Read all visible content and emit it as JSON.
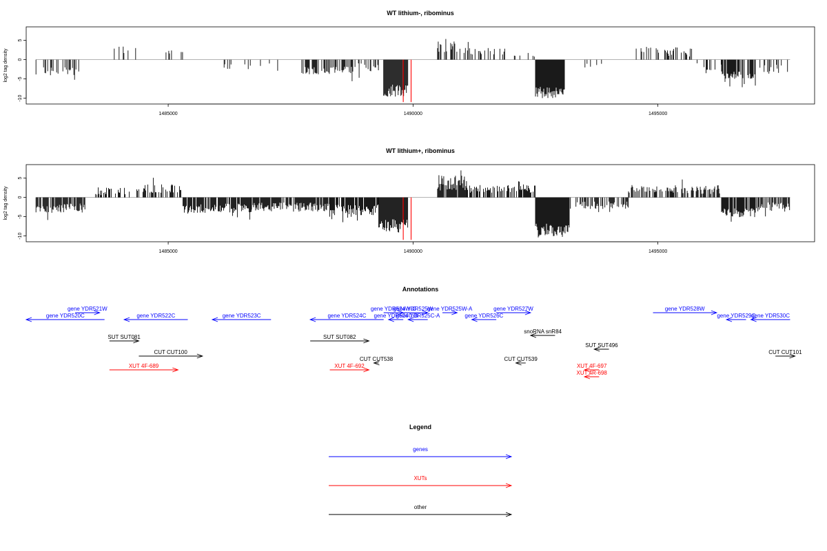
{
  "chart_data": [
    {
      "type": "bar",
      "title": "WT lithium-, ribominus",
      "ylabel": "log2 tag density",
      "xlim": [
        1482100,
        1498200
      ],
      "ylim": [
        -11.5,
        8.5
      ],
      "xticks": [
        1485000,
        1490000,
        1495000
      ],
      "yticks": [
        5,
        0,
        -5,
        -10
      ],
      "grid": false,
      "red_markers_x": [
        1489800,
        1489960
      ],
      "regions": [
        {
          "start": 1482300,
          "end": 1483200,
          "base": -3.0,
          "amp": 1.2,
          "density": 0.4
        },
        {
          "start": 1483800,
          "end": 1484400,
          "base": 2.5,
          "amp": 1.0,
          "density": 0.2
        },
        {
          "start": 1484800,
          "end": 1485300,
          "base": 1.8,
          "amp": 0.6,
          "density": 0.1
        },
        {
          "start": 1486100,
          "end": 1486700,
          "base": -1.8,
          "amp": 0.7,
          "density": 0.2
        },
        {
          "start": 1486700,
          "end": 1487300,
          "base": -1.5,
          "amp": 0.5,
          "density": 0.1
        },
        {
          "start": 1487700,
          "end": 1488800,
          "base": -2.8,
          "amp": 1.0,
          "density": 0.5
        },
        {
          "start": 1488800,
          "end": 1489300,
          "base": -2.0,
          "amp": 1.2,
          "density": 0.3
        },
        {
          "start": 1489400,
          "end": 1489900,
          "base": -8.0,
          "amp": 1.6,
          "density": 1.0
        },
        {
          "start": 1490500,
          "end": 1490900,
          "base": 3.5,
          "amp": 2.0,
          "density": 0.7
        },
        {
          "start": 1490900,
          "end": 1491900,
          "base": 2.2,
          "amp": 0.9,
          "density": 0.25
        },
        {
          "start": 1491900,
          "end": 1492500,
          "base": 1.5,
          "amp": 1.0,
          "density": 0.2
        },
        {
          "start": 1492500,
          "end": 1493100,
          "base": -8.6,
          "amp": 1.6,
          "density": 1.0
        },
        {
          "start": 1493300,
          "end": 1493900,
          "base": -1.6,
          "amp": 0.6,
          "density": 0.1
        },
        {
          "start": 1494500,
          "end": 1495000,
          "base": 2.5,
          "amp": 1.0,
          "density": 0.2
        },
        {
          "start": 1495000,
          "end": 1495800,
          "base": 2.0,
          "amp": 1.2,
          "density": 0.3
        },
        {
          "start": 1495800,
          "end": 1496300,
          "base": -1.8,
          "amp": 1.0,
          "density": 0.2
        },
        {
          "start": 1496300,
          "end": 1497000,
          "base": -4.0,
          "amp": 1.0,
          "density": 0.7
        },
        {
          "start": 1497000,
          "end": 1497700,
          "base": -2.5,
          "amp": 1.2,
          "density": 0.3
        }
      ]
    },
    {
      "type": "bar",
      "title": "WT lithium+, ribominus",
      "ylabel": "log2 tag density",
      "xlim": [
        1482100,
        1498200
      ],
      "ylim": [
        -11.5,
        8.5
      ],
      "xticks": [
        1485000,
        1490000,
        1495000
      ],
      "yticks": [
        5,
        0,
        -5,
        -10
      ],
      "grid": false,
      "red_markers_x": [
        1489800,
        1489960
      ],
      "regions": [
        {
          "start": 1482300,
          "end": 1483300,
          "base": -2.8,
          "amp": 1.2,
          "density": 0.8
        },
        {
          "start": 1483500,
          "end": 1484400,
          "base": 1.6,
          "amp": 1.0,
          "density": 0.4
        },
        {
          "start": 1484400,
          "end": 1485300,
          "base": 2.2,
          "amp": 1.2,
          "density": 0.5
        },
        {
          "start": 1485300,
          "end": 1486700,
          "base": -2.8,
          "amp": 1.2,
          "density": 0.8
        },
        {
          "start": 1486700,
          "end": 1488300,
          "base": -2.5,
          "amp": 1.2,
          "density": 0.9
        },
        {
          "start": 1488300,
          "end": 1489300,
          "base": -3.2,
          "amp": 1.4,
          "density": 0.9
        },
        {
          "start": 1489300,
          "end": 1489900,
          "base": -7.5,
          "amp": 1.8,
          "density": 1.0
        },
        {
          "start": 1490500,
          "end": 1491100,
          "base": 3.8,
          "amp": 2.0,
          "density": 0.9
        },
        {
          "start": 1491100,
          "end": 1492500,
          "base": 2.2,
          "amp": 1.0,
          "density": 0.6
        },
        {
          "start": 1492500,
          "end": 1493200,
          "base": -8.6,
          "amp": 1.8,
          "density": 1.0
        },
        {
          "start": 1493200,
          "end": 1494400,
          "base": -2.0,
          "amp": 1.0,
          "density": 0.5
        },
        {
          "start": 1494400,
          "end": 1495500,
          "base": 2.2,
          "amp": 1.0,
          "density": 0.5
        },
        {
          "start": 1495500,
          "end": 1496300,
          "base": 2.0,
          "amp": 1.2,
          "density": 0.6
        },
        {
          "start": 1496300,
          "end": 1497000,
          "base": -4.0,
          "amp": 1.2,
          "density": 0.9
        },
        {
          "start": 1497000,
          "end": 1497700,
          "base": -2.5,
          "amp": 1.2,
          "density": 0.7
        }
      ]
    },
    {
      "type": "annotation-track",
      "title": "Annotations",
      "xlim": [
        1482100,
        1498200
      ],
      "features": [
        {
          "label": "gene YDR520C",
          "start": 1482100,
          "end": 1483700,
          "strand": "-",
          "row": 0,
          "kind": "gene"
        },
        {
          "label": "gene YDR521W",
          "start": 1483100,
          "end": 1483600,
          "strand": "+",
          "row": -1,
          "kind": "gene"
        },
        {
          "label": "gene YDR522C",
          "start": 1484100,
          "end": 1485400,
          "strand": "-",
          "row": 0,
          "kind": "gene"
        },
        {
          "label": "gene YDR523C",
          "start": 1485900,
          "end": 1487100,
          "strand": "-",
          "row": 0,
          "kind": "gene"
        },
        {
          "label": "gene YDR524C",
          "start": 1487900,
          "end": 1489400,
          "strand": "-",
          "row": 0,
          "kind": "gene"
        },
        {
          "label": "gene YDR524W-C",
          "start": 1489400,
          "end": 1489800,
          "strand": "+",
          "row": -1,
          "kind": "gene"
        },
        {
          "label": "gene YDR525W",
          "start": 1489700,
          "end": 1490300,
          "strand": "+",
          "row": -1,
          "kind": "gene"
        },
        {
          "label": "gene YDR524C-B",
          "start": 1489500,
          "end": 1489800,
          "strand": "-",
          "row": 0,
          "kind": "gene"
        },
        {
          "label": "gene YDR525C-A",
          "start": 1489900,
          "end": 1490300,
          "strand": "-",
          "row": 0,
          "kind": "gene"
        },
        {
          "label": "gene YDR525W-A",
          "start": 1490600,
          "end": 1490900,
          "strand": "+",
          "row": -1,
          "kind": "gene"
        },
        {
          "label": "gene YDR526C",
          "start": 1491200,
          "end": 1491700,
          "strand": "-",
          "row": 0,
          "kind": "gene"
        },
        {
          "label": "gene YDR527W",
          "start": 1491700,
          "end": 1492400,
          "strand": "+",
          "row": -1,
          "kind": "gene"
        },
        {
          "label": "gene YDR528W",
          "start": 1494900,
          "end": 1496200,
          "strand": "+",
          "row": -1,
          "kind": "gene"
        },
        {
          "label": "gene YDR529C",
          "start": 1496400,
          "end": 1496800,
          "strand": "-",
          "row": 0,
          "kind": "gene"
        },
        {
          "label": "gene YDR530C",
          "start": 1496900,
          "end": 1497700,
          "strand": "-",
          "row": 0,
          "kind": "gene"
        },
        {
          "label": "snoRNA snR84",
          "start": 1492400,
          "end": 1492900,
          "strand": "-",
          "row": 1,
          "kind": "other"
        },
        {
          "label": "SUT SUT081",
          "start": 1483800,
          "end": 1484400,
          "strand": "+",
          "row": 2,
          "kind": "other"
        },
        {
          "label": "SUT SUT082",
          "start": 1487900,
          "end": 1489100,
          "strand": "+",
          "row": 2,
          "kind": "other"
        },
        {
          "label": "SUT SUT496",
          "start": 1493700,
          "end": 1494000,
          "strand": "-",
          "row": 3,
          "kind": "other"
        },
        {
          "label": "CUT CUT100",
          "start": 1484400,
          "end": 1485700,
          "strand": "+",
          "row": 4,
          "kind": "other"
        },
        {
          "label": "CUT CUT538",
          "start": 1489200,
          "end": 1489300,
          "strand": "-",
          "row": 5,
          "kind": "other"
        },
        {
          "label": "CUT CUT539",
          "start": 1492100,
          "end": 1492300,
          "strand": "-",
          "row": 5,
          "kind": "other"
        },
        {
          "label": "CUT CUT101",
          "start": 1497400,
          "end": 1497800,
          "strand": "+",
          "row": 4,
          "kind": "other"
        },
        {
          "label": "XUT 4F-689",
          "start": 1483800,
          "end": 1485200,
          "strand": "+",
          "row": 6,
          "kind": "xut"
        },
        {
          "label": "XUT 4F-692",
          "start": 1488300,
          "end": 1489100,
          "strand": "+",
          "row": 6,
          "kind": "xut"
        },
        {
          "label": "XUT 4F-697",
          "start": 1493500,
          "end": 1493800,
          "strand": "-",
          "row": 6,
          "kind": "xut"
        },
        {
          "label": "XUT 4R-698",
          "start": 1493500,
          "end": 1493800,
          "strand": "-",
          "row": 7,
          "kind": "xut"
        }
      ]
    },
    {
      "type": "legend",
      "title": "Legend",
      "entries": [
        {
          "label": "genes",
          "color": "#0000ff"
        },
        {
          "label": "XUTs",
          "color": "#ff0000"
        },
        {
          "label": "other",
          "color": "#000000"
        }
      ]
    }
  ],
  "colors": {
    "gene": "#0000ff",
    "xut": "#ff0000",
    "other": "#000000",
    "marker": "#ff0000",
    "zero_line": "#999999"
  }
}
